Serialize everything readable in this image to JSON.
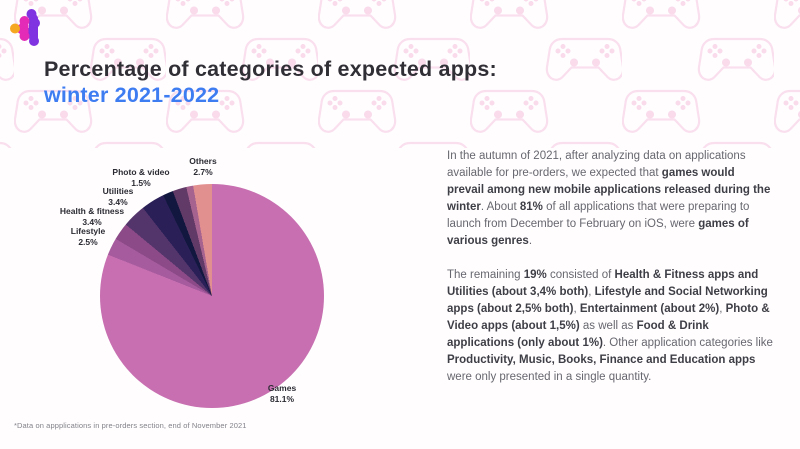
{
  "header": {
    "title_line1": "Percentage of categories of expected apps:",
    "title_line2": "winter 2021-2022",
    "title_color": "#312f36",
    "accent_color": "#3e7cf2"
  },
  "logo": {
    "description": "cluster of linked dots",
    "colors": {
      "orange": "#f6a722",
      "magenta": "#e32bb8",
      "purple": "#8033e0"
    }
  },
  "background": {
    "pattern": "gamepad-outlines",
    "pattern_color": "#f9dcec"
  },
  "chart_data": {
    "type": "pie",
    "title": "Percentage of categories of expected apps: winter 2021-2022",
    "start_angle_deg": 0,
    "direction": "clockwise",
    "legend_position": "callout-labels",
    "slices": [
      {
        "label": "Games",
        "value": 81.1,
        "display": "81.1%",
        "color": "#c76fb0",
        "labeled": true
      },
      {
        "label": "Lifestyle",
        "value": 2.5,
        "display": "2.5%",
        "color": "#a75b9f",
        "labeled": true
      },
      {
        "label": "Social Networking",
        "value": 2.5,
        "display": "2.5%",
        "color": "#8c4b88",
        "labeled": false
      },
      {
        "label": "Health & fitness",
        "value": 3.4,
        "display": "3.4%",
        "color": "#54356b",
        "labeled": true
      },
      {
        "label": "Utilities",
        "value": 3.4,
        "display": "3.4%",
        "color": "#2a2057",
        "labeled": true
      },
      {
        "label": "Photo & video",
        "value": 1.5,
        "display": "1.5%",
        "color": "#121740",
        "labeled": true
      },
      {
        "label": "Entertainment",
        "value": 2.0,
        "display": "2%",
        "color": "#613a67",
        "labeled": false
      },
      {
        "label": "Food & Drink",
        "value": 1.0,
        "display": "1%",
        "color": "#a7638f",
        "labeled": false
      },
      {
        "label": "Others",
        "value": 2.7,
        "display": "2.7%",
        "color": "#e28f90",
        "labeled": true
      }
    ]
  },
  "pie_callouts": {
    "photo_video": {
      "name": "Photo & video",
      "pct": "1.5%"
    },
    "others": {
      "name": "Others",
      "pct": "2.7%"
    },
    "utilities": {
      "name": "Utilities",
      "pct": "3.4%"
    },
    "health_fitness": {
      "name": "Health & fitness",
      "pct": "3.4%"
    },
    "lifestyle": {
      "name": "Lifestyle",
      "pct": "2.5%"
    },
    "games": {
      "name": "Games",
      "pct": "81.1%"
    }
  },
  "body": {
    "paragraph1": [
      {
        "t": "In the autumn of 2021, after analyzing data on applications available for pre-orders, we expected that ",
        "b": false
      },
      {
        "t": "games would prevail among new mobile applications released during the winter",
        "b": true
      },
      {
        "t": ". About ",
        "b": false
      },
      {
        "t": "81%",
        "b": true
      },
      {
        "t": " of all applications that were preparing to launch from December to February on iOS, were ",
        "b": false
      },
      {
        "t": "games of various genres",
        "b": true
      },
      {
        "t": ".",
        "b": false
      }
    ],
    "paragraph2": [
      {
        "t": "The remaining ",
        "b": false
      },
      {
        "t": "19%",
        "b": true
      },
      {
        "t": " consisted of ",
        "b": false
      },
      {
        "t": "Health & Fitness apps and Utilities (about 3,4% both)",
        "b": true
      },
      {
        "t": ", ",
        "b": false
      },
      {
        "t": "Lifestyle and Social Networking apps (about 2,5% both)",
        "b": true
      },
      {
        "t": ", ",
        "b": false
      },
      {
        "t": "Entertainment (about 2%)",
        "b": true
      },
      {
        "t": ", ",
        "b": false
      },
      {
        "t": "Photo & Video apps (about 1,5%)",
        "b": true
      },
      {
        "t": " as well as ",
        "b": false
      },
      {
        "t": "Food & Drink applications (only about 1%)",
        "b": true
      },
      {
        "t": ". Other application categories like ",
        "b": false
      },
      {
        "t": "Productivity, Music, Books, Finance and Education apps",
        "b": true
      },
      {
        "t": " were only presented in a single quantity.",
        "b": false
      }
    ]
  },
  "footnote": "*Data on appplications in pre-orders section, end of November 2021"
}
